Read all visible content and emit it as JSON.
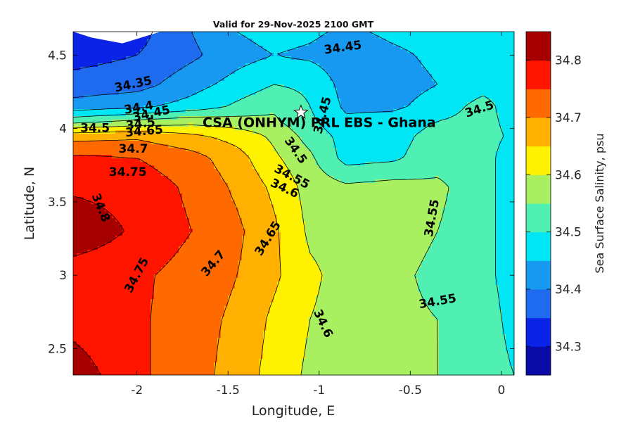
{
  "chart_data": {
    "type": "contourf",
    "title": "Valid for 29-Nov-2025 2100 GMT",
    "xlabel": "Longitude, E",
    "ylabel": "Latitude, N",
    "xlim": [
      -2.35,
      0.07
    ],
    "ylim": [
      2.32,
      4.66
    ],
    "x_ticks": [
      "-2",
      "-1.5",
      "-1",
      "-0.5",
      "0"
    ],
    "y_ticks": [
      "2.5",
      "3",
      "3.5",
      "4",
      "4.5"
    ],
    "colorbar": {
      "label": "Sea Surface Salinity, psu",
      "range": [
        34.25,
        34.85
      ],
      "ticks": [
        "34.3",
        "34.4",
        "34.5",
        "34.6",
        "34.7",
        "34.8"
      ],
      "levels": [
        34.25,
        34.3,
        34.35,
        34.4,
        34.45,
        34.5,
        34.55,
        34.6,
        34.65,
        34.7,
        34.75,
        34.8,
        34.85
      ],
      "colors": [
        "#0a0aa6",
        "#0a23e6",
        "#1e6bf0",
        "#1799f2",
        "#00e6f4",
        "#4ff0b2",
        "#a9f060",
        "#fff200",
        "#ffb000",
        "#ff6a00",
        "#ff1400",
        "#a60000"
      ]
    },
    "contour_labels": [
      {
        "text": "34.45",
        "lon": -0.87,
        "lat": 4.55,
        "rot": -8
      },
      {
        "text": "34.35",
        "lon": -2.02,
        "lat": 4.3,
        "rot": -12
      },
      {
        "text": "34.4",
        "lon": -1.99,
        "lat": 4.14,
        "rot": -10
      },
      {
        "text": "34.45",
        "lon": -1.92,
        "lat": 4.1,
        "rot": -12
      },
      {
        "text": "34.5",
        "lon": -1.98,
        "lat": 4.03,
        "rot": -8
      },
      {
        "text": "34.5",
        "lon": -2.23,
        "lat": 4.0,
        "rot": 0
      },
      {
        "text": "34.65",
        "lon": -1.96,
        "lat": 3.98,
        "rot": -5
      },
      {
        "text": "34.7",
        "lon": -2.02,
        "lat": 3.86,
        "rot": 0
      },
      {
        "text": "34.75",
        "lon": -2.05,
        "lat": 3.7,
        "rot": 0
      },
      {
        "text": "34.8",
        "lon": -2.2,
        "lat": 3.46,
        "rot": 68
      },
      {
        "text": "34.75",
        "lon": -2.0,
        "lat": 3.0,
        "rot": -62
      },
      {
        "text": "34.7",
        "lon": -1.58,
        "lat": 3.08,
        "rot": -50
      },
      {
        "text": "34.65",
        "lon": -1.28,
        "lat": 3.25,
        "rot": -58
      },
      {
        "text": "34.6",
        "lon": -1.19,
        "lat": 3.59,
        "rot": 25
      },
      {
        "text": "34.55",
        "lon": -1.15,
        "lat": 3.67,
        "rot": 28
      },
      {
        "text": "34.5",
        "lon": -1.13,
        "lat": 3.85,
        "rot": 55
      },
      {
        "text": "34.45",
        "lon": -0.98,
        "lat": 4.09,
        "rot": -75
      },
      {
        "text": "34.5",
        "lon": -0.12,
        "lat": 4.13,
        "rot": -18
      },
      {
        "text": "34.55",
        "lon": -0.38,
        "lat": 3.39,
        "rot": -80
      },
      {
        "text": "34.55",
        "lon": -0.35,
        "lat": 2.82,
        "rot": -10
      },
      {
        "text": "34.6",
        "lon": -0.98,
        "lat": 2.67,
        "rot": 65
      }
    ],
    "annotation": {
      "text": "CSA (ONHYM) PRL EBS  - Ghana",
      "lon": -1.1,
      "lat": 4.11,
      "marker": "star"
    }
  }
}
